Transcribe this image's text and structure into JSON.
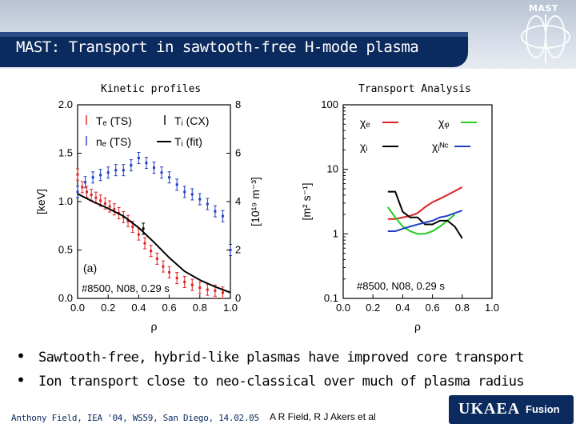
{
  "slide": {
    "logo": "MAST",
    "title": "MAST: Transport in sawtooth-free H-mode plasma",
    "left_panel_label": "Kinetic profiles",
    "right_panel_label": "Transport Analysis",
    "bullets": [
      "Sawtooth-free, hybrid-like plasmas have improved core transport",
      "Ion transport close to neo-classical over much of plasma radius"
    ],
    "footer_left": "Anthony Field, IEA '04, WS59, San Diego, 14.02.05",
    "footer_right": "A R Field, R J Akers et al",
    "brand": "UKAEA",
    "brand_sub": "Fusion",
    "colors": {
      "title_bar": "#0b2a5e",
      "red": "#e02020",
      "blue": "#1f3fc0",
      "green": "#22cc22",
      "black": "#000000"
    }
  },
  "chart_data": [
    {
      "type": "line",
      "panel_tag": "(a)",
      "annotation": "#8500, N08, 0.29 s",
      "xlabel": "ρ",
      "ylabel_left": "[keV]",
      "ylabel_right": "[10¹⁹ m⁻³]",
      "xlim": [
        0.0,
        1.0
      ],
      "ylim_left": [
        0.0,
        2.0
      ],
      "ylim_right": [
        0,
        8
      ],
      "xticks": [
        "0.0",
        "0.2",
        "0.4",
        "0.6",
        "0.8",
        "1.0"
      ],
      "yticks_left": [
        "0.0",
        "0.5",
        "1.0",
        "1.5",
        "2.0"
      ],
      "yticks_right": [
        "0",
        "2",
        "4",
        "6",
        "8"
      ],
      "legend": [
        "Tₑ (TS)",
        "Tᵢ (CX)",
        "nₑ (TS)",
        "Tᵢ (fit)"
      ],
      "series": [
        {
          "name": "Tₑ (TS)",
          "color": "#e02020",
          "style": "errorbar",
          "axis": "left",
          "x": [
            0.0,
            0.03,
            0.06,
            0.09,
            0.12,
            0.15,
            0.18,
            0.21,
            0.24,
            0.27,
            0.3,
            0.33,
            0.36,
            0.4,
            0.44,
            0.48,
            0.52,
            0.56,
            0.6,
            0.65,
            0.7,
            0.75,
            0.8,
            0.85,
            0.9,
            0.95
          ],
          "y": [
            1.28,
            1.15,
            1.1,
            1.07,
            1.04,
            1.01,
            0.98,
            0.95,
            0.92,
            0.88,
            0.84,
            0.8,
            0.74,
            0.66,
            0.57,
            0.49,
            0.41,
            0.33,
            0.27,
            0.21,
            0.17,
            0.14,
            0.11,
            0.09,
            0.08,
            0.06
          ]
        },
        {
          "name": "nₑ (TS)",
          "color": "#1f3fc0",
          "style": "errorbar",
          "axis": "right",
          "x": [
            0.0,
            0.05,
            0.1,
            0.15,
            0.2,
            0.25,
            0.3,
            0.35,
            0.4,
            0.45,
            0.5,
            0.55,
            0.6,
            0.65,
            0.7,
            0.75,
            0.8,
            0.85,
            0.9,
            0.95,
            1.0
          ],
          "y": [
            4.4,
            4.8,
            5.0,
            5.1,
            5.2,
            5.3,
            5.3,
            5.5,
            5.8,
            5.6,
            5.4,
            5.2,
            5.0,
            4.7,
            4.4,
            4.3,
            4.1,
            3.9,
            3.6,
            3.4,
            2.0
          ]
        },
        {
          "name": "Tᵢ (fit)",
          "color": "#000000",
          "style": "line",
          "axis": "left",
          "x": [
            0.0,
            0.1,
            0.2,
            0.3,
            0.4,
            0.5,
            0.6,
            0.7,
            0.8,
            0.9,
            1.0
          ],
          "y": [
            1.08,
            1.0,
            0.93,
            0.85,
            0.73,
            0.58,
            0.42,
            0.28,
            0.19,
            0.12,
            0.06
          ]
        },
        {
          "name": "Tᵢ (CX)",
          "color": "#000000",
          "style": "errorbar",
          "axis": "left",
          "x": [
            0.43
          ],
          "y": [
            0.72
          ]
        }
      ]
    },
    {
      "type": "line",
      "annotation": "#8500, N08, 0.29 s",
      "xlabel": "ρ",
      "ylabel": "[m² s⁻¹]",
      "xlim": [
        0.0,
        1.0
      ],
      "ylim": [
        0.1,
        100
      ],
      "yscale": "log",
      "xticks": [
        "0.0",
        "0.2",
        "0.4",
        "0.6",
        "0.8",
        "1.0"
      ],
      "yticks": [
        "0.1",
        "1",
        "10",
        "100"
      ],
      "legend": [
        "χₑ",
        "χᵩ",
        "χᵢ",
        "χᵢᴺᶜ"
      ],
      "series": [
        {
          "name": "χₑ",
          "color": "#e02020",
          "x": [
            0.3,
            0.35,
            0.4,
            0.45,
            0.5,
            0.55,
            0.6,
            0.65,
            0.7,
            0.75,
            0.8
          ],
          "y": [
            1.7,
            1.7,
            1.8,
            1.9,
            2.1,
            2.6,
            3.1,
            3.5,
            4.0,
            4.6,
            5.3
          ]
        },
        {
          "name": "χᵩ",
          "color": "#22cc22",
          "x": [
            0.3,
            0.35,
            0.4,
            0.45,
            0.5,
            0.55,
            0.6,
            0.65,
            0.7,
            0.75
          ],
          "y": [
            2.6,
            1.8,
            1.3,
            1.1,
            1.0,
            1.0,
            1.1,
            1.3,
            1.6,
            2.0
          ]
        },
        {
          "name": "χᵢ",
          "color": "#000000",
          "x": [
            0.3,
            0.35,
            0.4,
            0.45,
            0.5,
            0.55,
            0.6,
            0.65,
            0.7,
            0.75,
            0.8
          ],
          "y": [
            4.5,
            4.5,
            2.2,
            1.8,
            1.8,
            1.4,
            1.4,
            1.6,
            1.6,
            1.3,
            0.85
          ]
        },
        {
          "name": "χᵢᴺᶜ",
          "color": "#1f3fc0",
          "x": [
            0.3,
            0.35,
            0.4,
            0.45,
            0.5,
            0.55,
            0.6,
            0.65,
            0.7,
            0.75,
            0.8
          ],
          "y": [
            1.1,
            1.1,
            1.2,
            1.3,
            1.4,
            1.5,
            1.6,
            1.8,
            1.9,
            2.1,
            2.3
          ]
        }
      ]
    }
  ]
}
